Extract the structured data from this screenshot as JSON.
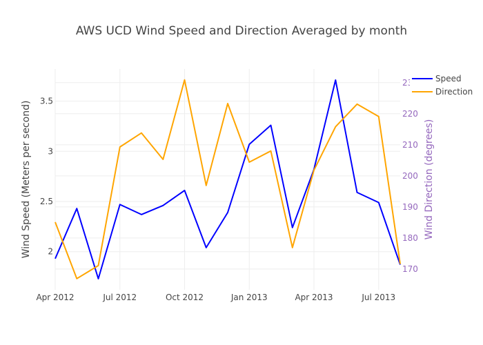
{
  "chart_data": {
    "type": "line",
    "title": "AWS UCD Wind Speed and Direction Averaged by month",
    "x": [
      "2012-04",
      "2012-05",
      "2012-06",
      "2012-07",
      "2012-08",
      "2012-09",
      "2012-10",
      "2012-11",
      "2012-12",
      "2013-01",
      "2013-02",
      "2013-03",
      "2013-04",
      "2013-05",
      "2013-06",
      "2013-07",
      "2013-08"
    ],
    "x_ticks": [
      "Apr 2012",
      "Jul 2012",
      "Oct 2012",
      "Jan 2013",
      "Apr 2013",
      "Jul 2013"
    ],
    "ylabel": "Wind Speed (Meters per second)",
    "y2label": "Wind Direction (degrees)",
    "ylim": [
      1.62,
      3.82
    ],
    "y2lim": [
      163.3,
      234.4
    ],
    "y_ticks": [
      "2",
      "2.5",
      "3",
      "3.5"
    ],
    "y2_ticks": [
      "170",
      "180",
      "190",
      "200",
      "210",
      "220",
      "230"
    ],
    "grid": true,
    "legend_position": "top-right",
    "series": [
      {
        "name": "Speed",
        "axis": "left",
        "color": "#0000ff",
        "values": [
          1.93,
          2.43,
          1.73,
          2.47,
          2.37,
          2.46,
          2.61,
          2.04,
          2.39,
          3.07,
          3.26,
          2.24,
          2.82,
          3.71,
          2.59,
          2.49,
          1.87
        ]
      },
      {
        "name": "Direction",
        "axis": "right",
        "color": "#ffa500",
        "values": [
          185.1,
          166.9,
          171.1,
          209.3,
          213.8,
          205.3,
          230.9,
          196.9,
          223.3,
          204.4,
          208.0,
          176.9,
          201.8,
          215.8,
          223.1,
          219.1,
          171.6
        ]
      }
    ],
    "colors": {
      "right_axis": "#9467bd",
      "text": "#444444",
      "grid": "#eeeeee"
    }
  }
}
